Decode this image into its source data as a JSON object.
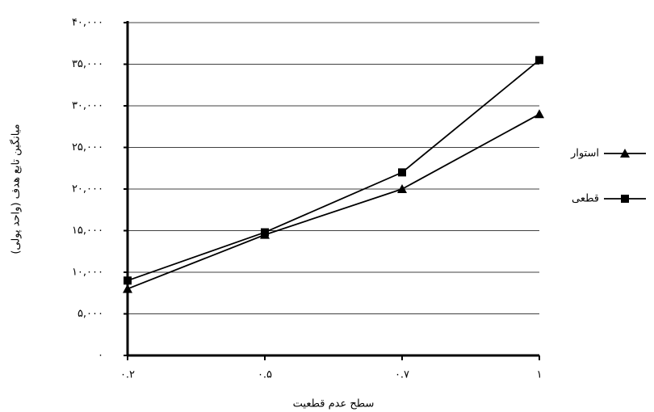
{
  "chart_data": {
    "type": "line",
    "y_label": "میانگین تابع هدف (واحد پولی)",
    "x_label": "سطح عدم قطعیت",
    "categories": [
      "۰.۲",
      "۰.۵",
      "۰.۷",
      "۱"
    ],
    "series": [
      {
        "name": "استوار",
        "color": "#000000",
        "marker": "triangle",
        "values": [
          8000,
          14500,
          20000,
          29000
        ]
      },
      {
        "name": "قطعی",
        "color": "#000000",
        "marker": "square",
        "values": [
          9000,
          14800,
          22000,
          35500
        ]
      }
    ],
    "ylim": [
      0,
      40000
    ],
    "yticks": [
      {
        "value": 0,
        "label": "۰"
      },
      {
        "value": 5000,
        "label": "۵,۰۰۰"
      },
      {
        "value": 10000,
        "label": "۱۰,۰۰۰"
      },
      {
        "value": 15000,
        "label": "۱۵,۰۰۰"
      },
      {
        "value": 20000,
        "label": "۲۰,۰۰۰"
      },
      {
        "value": 25000,
        "label": "۲۵,۰۰۰"
      },
      {
        "value": 30000,
        "label": "۳۰,۰۰۰"
      },
      {
        "value": 35000,
        "label": "۳۵,۰۰۰"
      },
      {
        "value": 40000,
        "label": "۴۰,۰۰۰"
      }
    ],
    "grid": true
  }
}
